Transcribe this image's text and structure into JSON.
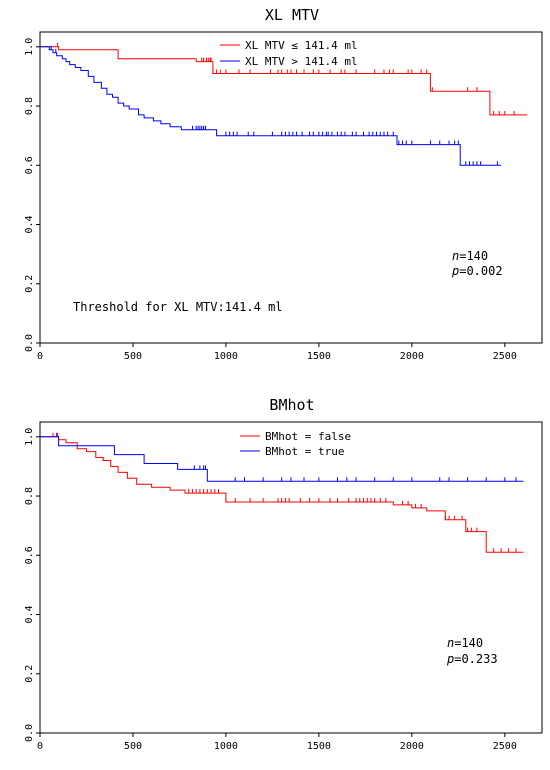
{
  "chart_data": [
    {
      "type": "line",
      "title": "XL MTV",
      "xlabel": "",
      "ylabel": "",
      "xlim": [
        0,
        2700
      ],
      "ylim": [
        0,
        1.05
      ],
      "xticks": [
        "0",
        "500",
        "1000",
        "1500",
        "2000",
        "2500"
      ],
      "xtick_values": [
        0,
        500,
        1000,
        1500,
        2000,
        2500
      ],
      "yticks": [
        "0.0",
        "0.2",
        "0.4",
        "0.6",
        "0.8",
        "1.0"
      ],
      "ytick_values": [
        0,
        0.2,
        0.4,
        0.6,
        0.8,
        1.0
      ],
      "legend_position": "top-center",
      "stats": {
        "n_label": "n",
        "n_value": "=140",
        "p_label": "p",
        "p_value": "=0.002"
      },
      "annotation": "Threshold for XL MTV:141.4 ml",
      "series": [
        {
          "name": "XL MTV ≤ 141.4 ml",
          "color": "#ff0000",
          "x": [
            0,
            100,
            420,
            840,
            930,
            2100,
            2420,
            2620
          ],
          "y": [
            1.0,
            0.99,
            0.96,
            0.95,
            0.91,
            0.85,
            0.77,
            0.77
          ],
          "censor_x": [
            95,
            870,
            880,
            895,
            905,
            915,
            920,
            930,
            950,
            970,
            1000,
            1070,
            1130,
            1240,
            1280,
            1300,
            1330,
            1350,
            1380,
            1420,
            1470,
            1500,
            1560,
            1620,
            1640,
            1700,
            1800,
            1850,
            1880,
            1900,
            1980,
            2000,
            2050,
            2080,
            2110,
            2300,
            2350,
            2440,
            2470,
            2500,
            2550
          ]
        },
        {
          "name": "XL MTV > 141.4 ml",
          "color": "#0000ff",
          "x": [
            0,
            50,
            70,
            90,
            120,
            140,
            160,
            190,
            220,
            260,
            290,
            330,
            360,
            390,
            420,
            450,
            480,
            530,
            560,
            610,
            650,
            700,
            760,
            820,
            950,
            1920,
            2260,
            2480
          ],
          "y": [
            1.0,
            0.99,
            0.98,
            0.97,
            0.96,
            0.95,
            0.94,
            0.93,
            0.92,
            0.9,
            0.88,
            0.86,
            0.84,
            0.83,
            0.81,
            0.8,
            0.79,
            0.77,
            0.76,
            0.75,
            0.74,
            0.73,
            0.72,
            0.72,
            0.7,
            0.67,
            0.6,
            0.6
          ],
          "censor_x": [
            60,
            85,
            820,
            840,
            850,
            860,
            870,
            880,
            890,
            1000,
            1020,
            1040,
            1060,
            1120,
            1150,
            1250,
            1300,
            1320,
            1340,
            1360,
            1380,
            1410,
            1450,
            1470,
            1500,
            1520,
            1540,
            1550,
            1570,
            1600,
            1620,
            1640,
            1680,
            1700,
            1740,
            1770,
            1790,
            1810,
            1830,
            1850,
            1870,
            1900,
            1930,
            1950,
            1970,
            2000,
            2100,
            2150,
            2200,
            2230,
            2250,
            2290,
            2310,
            2330,
            2350,
            2370,
            2460
          ]
        }
      ]
    },
    {
      "type": "line",
      "title": "BMhot",
      "xlabel": "",
      "ylabel": "",
      "xlim": [
        0,
        2700
      ],
      "ylim": [
        0,
        1.05
      ],
      "xticks": [
        "0",
        "500",
        "1000",
        "1500",
        "2000",
        "2500"
      ],
      "xtick_values": [
        0,
        500,
        1000,
        1500,
        2000,
        2500
      ],
      "yticks": [
        "0.0",
        "0.2",
        "0.4",
        "0.6",
        "0.8",
        "1.0"
      ],
      "ytick_values": [
        0,
        0.2,
        0.4,
        0.6,
        0.8,
        1.0
      ],
      "legend_position": "top-center",
      "stats": {
        "n_label": "n",
        "n_value": "=140",
        "p_label": "p",
        "p_value": "=0.233"
      },
      "annotation": "",
      "series": [
        {
          "name": "BMhot = false",
          "color": "#ff0000",
          "x": [
            0,
            100,
            140,
            200,
            250,
            300,
            340,
            380,
            420,
            470,
            520,
            600,
            700,
            780,
            1000,
            1900,
            2000,
            2080,
            2180,
            2290,
            2400,
            2600
          ],
          "y": [
            1.0,
            0.99,
            0.98,
            0.96,
            0.95,
            0.93,
            0.92,
            0.9,
            0.88,
            0.86,
            0.84,
            0.83,
            0.82,
            0.81,
            0.78,
            0.77,
            0.76,
            0.75,
            0.72,
            0.68,
            0.61,
            0.61
          ],
          "censor_x": [
            70,
            95,
            800,
            820,
            840,
            860,
            880,
            900,
            920,
            940,
            960,
            1000,
            1050,
            1130,
            1200,
            1280,
            1300,
            1320,
            1340,
            1400,
            1450,
            1500,
            1560,
            1600,
            1660,
            1700,
            1720,
            1740,
            1760,
            1780,
            1800,
            1830,
            1860,
            1950,
            1980,
            2020,
            2050,
            2180,
            2200,
            2230,
            2270,
            2300,
            2320,
            2350,
            2440,
            2480,
            2520,
            2560
          ]
        },
        {
          "name": "BMhot = true",
          "color": "#0000ff",
          "x": [
            0,
            100,
            400,
            560,
            740,
            900,
            2600
          ],
          "y": [
            1.0,
            0.97,
            0.94,
            0.91,
            0.89,
            0.85,
            0.85
          ],
          "censor_x": [
            90,
            830,
            860,
            880,
            890,
            1050,
            1100,
            1200,
            1300,
            1350,
            1420,
            1500,
            1600,
            1650,
            1700,
            1800,
            1900,
            2000,
            2150,
            2200,
            2300,
            2400,
            2500,
            2560
          ]
        }
      ]
    }
  ]
}
